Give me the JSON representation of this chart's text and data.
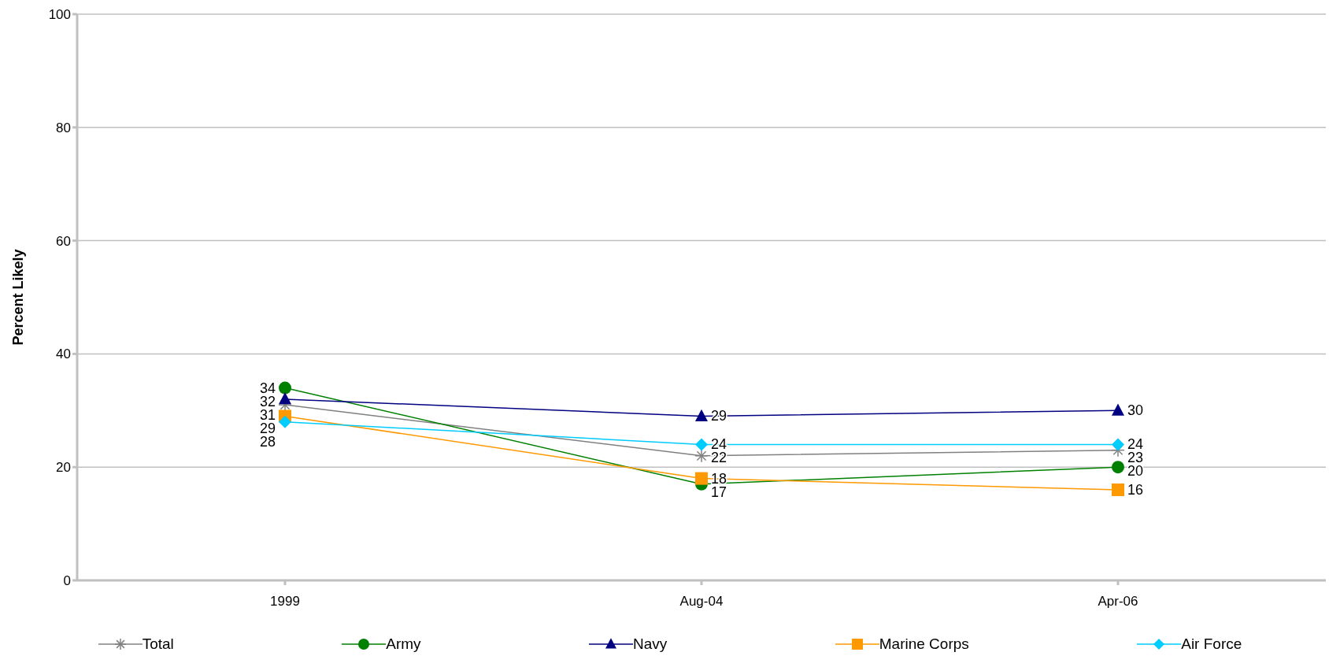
{
  "chart_data": {
    "type": "line",
    "ylabel": "Percent Likely",
    "categories": [
      "1999",
      "Aug-04",
      "Apr-06"
    ],
    "ylim": [
      0,
      100
    ],
    "yticks": [
      0,
      20,
      40,
      60,
      80,
      100
    ],
    "grid": "y",
    "legend": "bottom",
    "data_labels": true,
    "line_style": "solid",
    "series": [
      {
        "name": "Total",
        "color": "#808080",
        "marker": "cross",
        "values": [
          31,
          22,
          23
        ]
      },
      {
        "name": "Army",
        "color": "#008000",
        "marker": "circle",
        "values": [
          34,
          17,
          20
        ]
      },
      {
        "name": "Navy",
        "color": "#000080",
        "marker": "triangle",
        "values": [
          32,
          29,
          30
        ]
      },
      {
        "name": "Marine Corps",
        "color": "#ff9900",
        "marker": "square",
        "values": [
          29,
          18,
          16
        ]
      },
      {
        "name": "Air Force",
        "color": "#00ccff",
        "marker": "diamond",
        "values": [
          28,
          24,
          24
        ]
      }
    ]
  }
}
